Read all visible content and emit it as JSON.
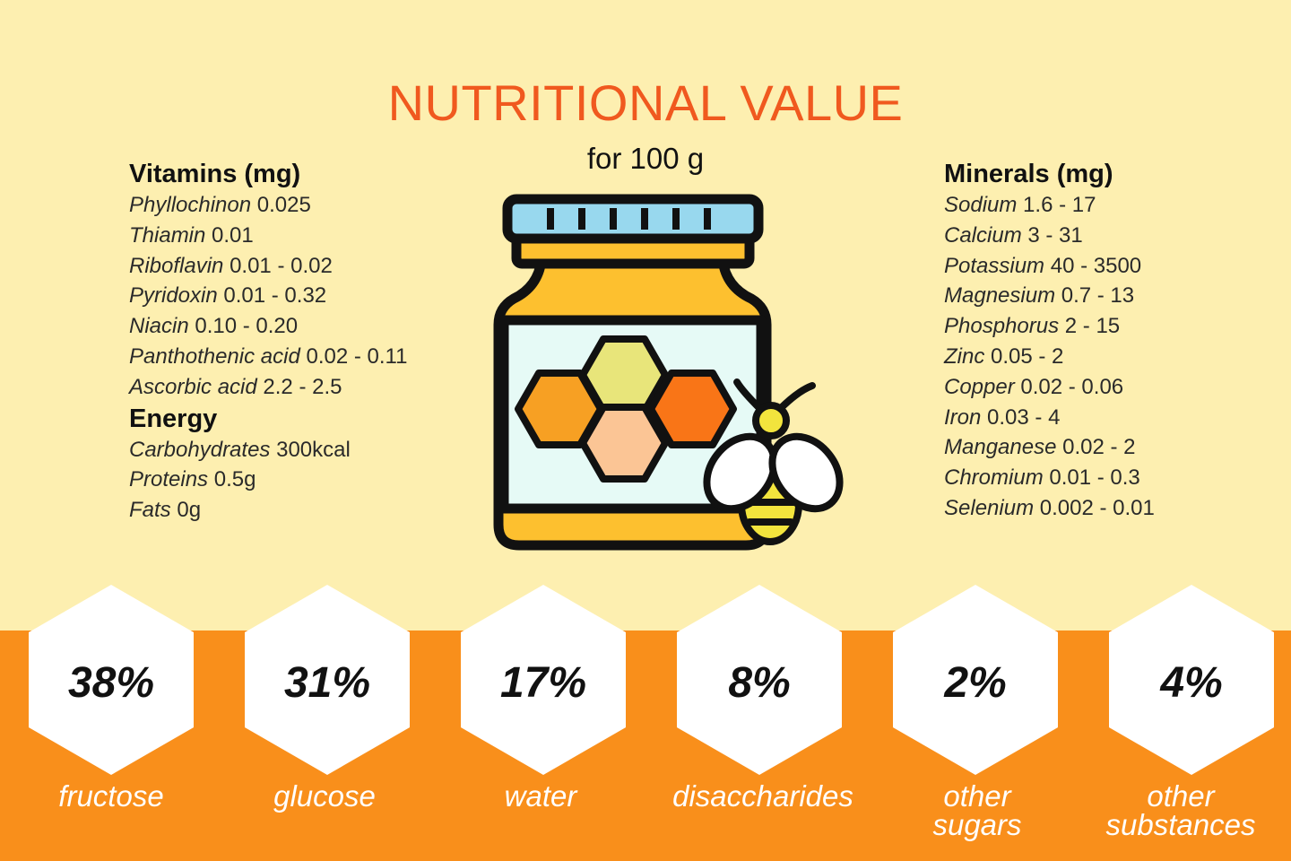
{
  "title": "NUTRITIONAL VALUE",
  "subtitle": "for 100 g",
  "vitamins": {
    "heading": "Vitamins (mg)",
    "items": [
      {
        "name": "Phyllochinon",
        "value": "0.025"
      },
      {
        "name": "Thiamin",
        "value": "0.01"
      },
      {
        "name": "Riboflavin",
        "value": "0.01 - 0.02"
      },
      {
        "name": "Pyridoxin",
        "value": "0.01 - 0.32"
      },
      {
        "name": "Niacin",
        "value": "0.10 - 0.20"
      },
      {
        "name": "Panthothenic acid",
        "value": "0.02 - 0.11"
      },
      {
        "name": "Ascorbic acid",
        "value": "2.2 - 2.5"
      }
    ]
  },
  "energy": {
    "heading": "Energy",
    "items": [
      {
        "name": "Carbohydrates",
        "value": "300kcal"
      },
      {
        "name": "Proteins",
        "value": "0.5g"
      },
      {
        "name": "Fats",
        "value": "0g"
      }
    ]
  },
  "minerals": {
    "heading": "Minerals (mg)",
    "items": [
      {
        "name": "Sodium",
        "value": "1.6 - 17"
      },
      {
        "name": "Calcium",
        "value": "3 - 31"
      },
      {
        "name": "Potassium",
        "value": "40 - 3500"
      },
      {
        "name": "Magnesium",
        "value": "0.7 - 13"
      },
      {
        "name": "Phosphorus",
        "value": "2 - 15"
      },
      {
        "name": "Zinc",
        "value": "0.05 - 2"
      },
      {
        "name": "Copper",
        "value": "0.02 - 0.06"
      },
      {
        "name": "Iron",
        "value": "0.03 - 4"
      },
      {
        "name": "Manganese",
        "value": "0.02 - 2"
      },
      {
        "name": "Chromium",
        "value": "0.01 - 0.3"
      },
      {
        "name": "Selenium",
        "value": "0.002 - 0.01"
      }
    ]
  },
  "composition": [
    {
      "percent": "38%",
      "label_lines": [
        "fructose"
      ]
    },
    {
      "percent": "31%",
      "label_lines": [
        "glucose"
      ]
    },
    {
      "percent": "17%",
      "label_lines": [
        "water"
      ]
    },
    {
      "percent": "8%",
      "label_lines": [
        "disaccharides"
      ]
    },
    {
      "percent": "2%",
      "label_lines": [
        "other",
        "sugars"
      ]
    },
    {
      "percent": "4%",
      "label_lines": [
        "other",
        "substances"
      ]
    }
  ],
  "colors": {
    "background": "#fdefb0",
    "band": "#f98f1b",
    "title": "#f0591f",
    "hexagon": "#ffffff",
    "label": "#ffffff"
  },
  "icons": [
    "honey-jar-icon",
    "bee-icon",
    "honeycomb-icon"
  ]
}
